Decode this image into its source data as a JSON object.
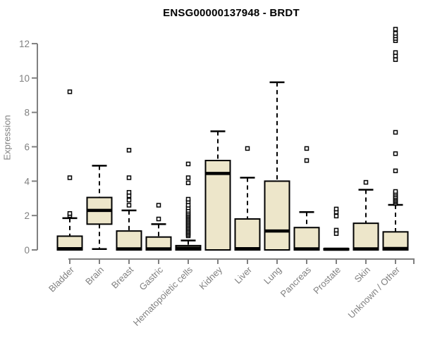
{
  "chart_data": {
    "type": "boxplot",
    "title": "ENSG00000137948 - BRDT",
    "ylabel": "Expression",
    "xlabel": "",
    "yticks": [
      0,
      2,
      4,
      6,
      8,
      10,
      12
    ],
    "ylim": [
      0,
      13.2
    ],
    "grid": false,
    "legend": false,
    "colors": {
      "box_fill": "#EDE6CA",
      "box_border": "#000000",
      "median": "#000000",
      "whisker": "#000000",
      "outlier_border": "#000000",
      "axis": "#808080",
      "tick_label": "#808080",
      "title": "#000000"
    },
    "categories": [
      "Bladder",
      "Brain",
      "Breast",
      "Gastric",
      "Hematopoietic cells",
      "Kidney",
      "Liver",
      "Lung",
      "Pancreas",
      "Prostate",
      "Skin",
      "Unknown / Other"
    ],
    "series": [
      {
        "category": "Bladder",
        "whisker_low": 0,
        "q1": 0,
        "median": 0.07,
        "q3": 0.8,
        "whisker_high": 1.85,
        "outliers": [
          2.0,
          2.12,
          4.2,
          9.2
        ]
      },
      {
        "category": "Brain",
        "whisker_low": 0.05,
        "q1": 1.5,
        "median": 2.3,
        "q3": 3.05,
        "whisker_high": 4.9,
        "outliers": []
      },
      {
        "category": "Breast",
        "whisker_low": 0,
        "q1": 0,
        "median": 0.06,
        "q3": 1.1,
        "whisker_high": 2.3,
        "outliers": [
          2.6,
          2.9,
          3.15,
          3.35,
          4.2,
          5.8
        ]
      },
      {
        "category": "Gastric",
        "whisker_low": 0,
        "q1": 0,
        "median": 0.06,
        "q3": 0.75,
        "whisker_high": 1.5,
        "outliers": [
          1.8,
          2.6
        ]
      },
      {
        "category": "Hematopoietic cells",
        "whisker_low": 0,
        "q1": 0,
        "median": 0.1,
        "q3": 0.25,
        "whisker_high": 0.55,
        "outliers": [
          0.82,
          0.9,
          0.98,
          1.06,
          1.14,
          1.22,
          1.3,
          1.38,
          1.46,
          1.54,
          1.62,
          1.7,
          1.78,
          1.86,
          1.94,
          2.02,
          2.1,
          2.2,
          2.3,
          2.45,
          2.6,
          2.8,
          2.95,
          3.9,
          4.2,
          5.0
        ]
      },
      {
        "category": "Kidney",
        "whisker_low": 0,
        "q1": 0,
        "median": 4.45,
        "q3": 5.2,
        "whisker_high": 6.9,
        "outliers": []
      },
      {
        "category": "Liver",
        "whisker_low": 0,
        "q1": 0,
        "median": 0.07,
        "q3": 1.8,
        "whisker_high": 4.2,
        "outliers": [
          5.9
        ]
      },
      {
        "category": "Lung",
        "whisker_low": 0,
        "q1": 0,
        "median": 1.1,
        "q3": 4.0,
        "whisker_high": 9.75,
        "outliers": []
      },
      {
        "category": "Pancreas",
        "whisker_low": 0,
        "q1": 0,
        "median": 0.06,
        "q3": 1.3,
        "whisker_high": 2.2,
        "outliers": [
          5.2,
          5.9
        ]
      },
      {
        "category": "Prostate",
        "whisker_low": 0,
        "q1": 0,
        "median": 0.04,
        "q3": 0.08,
        "whisker_high": 0.1,
        "outliers": [
          0.95,
          1.15,
          1.97,
          2.2,
          2.38
        ]
      },
      {
        "category": "Skin",
        "whisker_low": 0,
        "q1": 0,
        "median": 0.06,
        "q3": 1.55,
        "whisker_high": 3.5,
        "outliers": [
          3.93
        ]
      },
      {
        "category": "Unknown / Other",
        "whisker_low": 0,
        "q1": 0,
        "median": 0.08,
        "q3": 1.05,
        "whisker_high": 2.62,
        "outliers": [
          2.7,
          2.78,
          2.86,
          2.94,
          3.02,
          3.1,
          3.2,
          3.3,
          3.4,
          4.6,
          5.6,
          6.84,
          11.07,
          11.28,
          11.48,
          12.17,
          12.3,
          12.45,
          12.6,
          12.84
        ]
      }
    ]
  }
}
